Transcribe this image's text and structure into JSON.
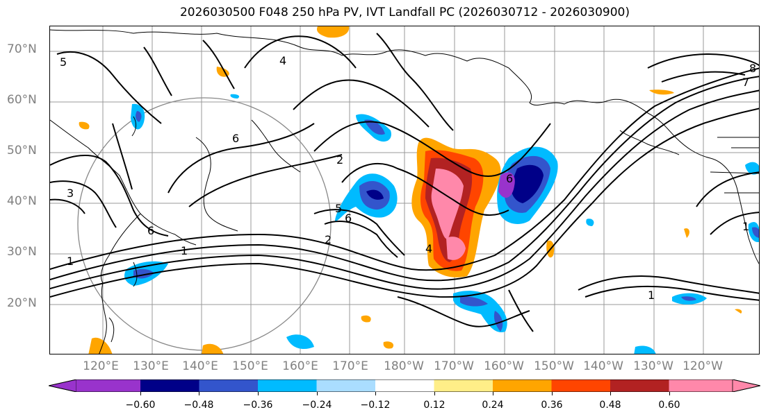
{
  "title": "2026030500 F048 250 hPa PV, IVT Landfall PC (2026030712 - 2026030900)",
  "lat_labels": [
    "70°N",
    "60°N",
    "50°N",
    "40°N",
    "30°N",
    "20°N"
  ],
  "lon_labels": [
    "120°E",
    "130°E",
    "140°E",
    "150°E",
    "160°E",
    "170°E",
    "180°W",
    "170°W",
    "160°W",
    "150°W",
    "140°W",
    "130°W",
    "120°W"
  ],
  "contour_labels": [
    "5",
    "4",
    "6",
    "2",
    "3",
    "1",
    "1",
    "6",
    "5",
    "6",
    "4",
    "2",
    "8",
    "7",
    "6",
    "1",
    "1"
  ],
  "colorbar": {
    "colors": [
      "#9933cc",
      "#000088",
      "#3355cc",
      "#00bbff",
      "#aaddff",
      "#ffffff",
      "#ffee88",
      "#ffa500",
      "#ff4500",
      "#b22222",
      "#ff88aa"
    ],
    "tick_labels": [
      "−0.60",
      "−0.48",
      "−0.36",
      "−0.24",
      "−0.12",
      "0.12",
      "0.24",
      "0.36",
      "0.48",
      "0.60"
    ]
  }
}
